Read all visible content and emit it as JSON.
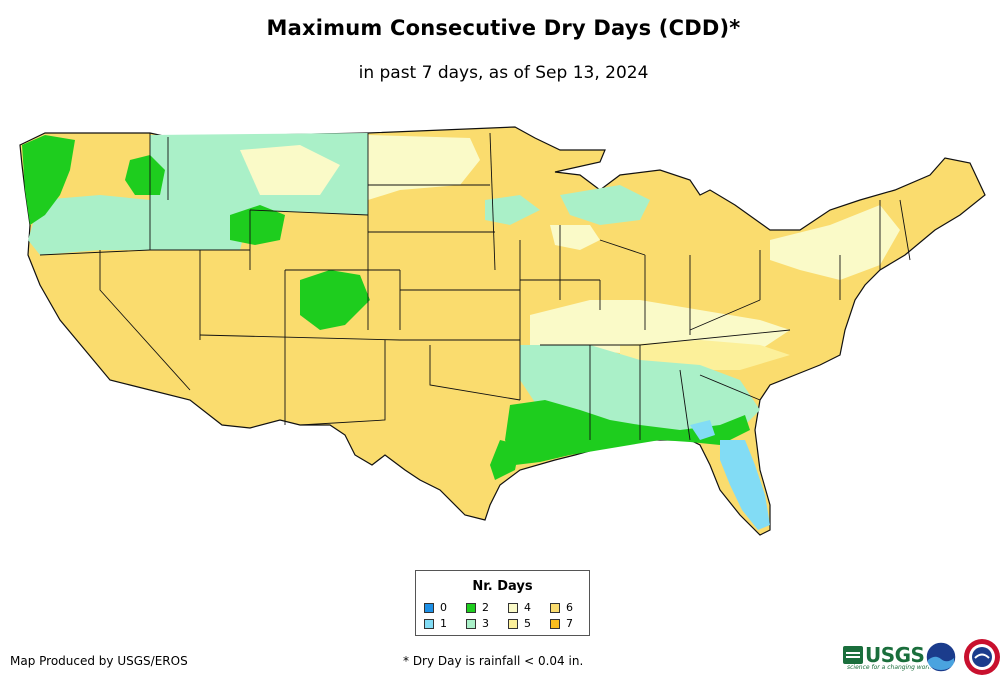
{
  "header": {
    "title": "Maximum Consecutive Dry Days (CDD)*",
    "subtitle": "in past 7 days, as of Sep 13, 2024"
  },
  "colors": {
    "0": "#1e90e6",
    "1": "#82dcf5",
    "2": "#1ecd1e",
    "3": "#aaf0c8",
    "4": "#fafac8",
    "5": "#fcf09a",
    "6": "#fadc6e",
    "7": "#fabe1e",
    "water": "#ffffff",
    "border": "#111111"
  },
  "legend": {
    "title": "Nr. Days",
    "items": [
      {
        "label": "0",
        "color": "#1e90e6"
      },
      {
        "label": "1",
        "color": "#82dcf5"
      },
      {
        "label": "2",
        "color": "#1ecd1e"
      },
      {
        "label": "3",
        "color": "#aaf0c8"
      },
      {
        "label": "4",
        "color": "#fafac8"
      },
      {
        "label": "5",
        "color": "#fcf09a"
      },
      {
        "label": "6",
        "color": "#fadc6e"
      },
      {
        "label": "7",
        "color": "#fabe1e"
      }
    ]
  },
  "footer": {
    "credit": "Map Produced by USGS/EROS",
    "footnote": "* Dry Day is rainfall < 0.04 in.",
    "logos": [
      "usgs-logo",
      "noaa-logo",
      "nws-logo"
    ],
    "usgs_text": "USGS",
    "usgs_tagline": "science for a changing world"
  }
}
